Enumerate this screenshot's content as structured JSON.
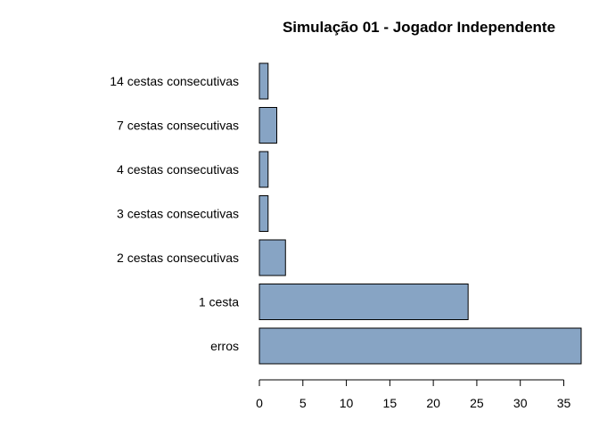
{
  "chart_data": {
    "type": "bar",
    "orientation": "horizontal",
    "title": "Simulação 01 - Jogador Independente",
    "xlabel": "",
    "ylabel": "",
    "categories": [
      "erros",
      "1 cesta",
      "2 cestas consecutivas",
      "3 cestas consecutivas",
      "4 cestas consecutivas",
      "7 cestas consecutivas",
      "14 cestas consecutivas"
    ],
    "values": [
      37,
      24,
      3,
      1,
      1,
      2,
      1
    ],
    "xlim": [
      0,
      37
    ],
    "x_ticks": [
      0,
      5,
      10,
      15,
      20,
      25,
      30,
      35
    ],
    "grid": false,
    "legend": "none",
    "bar_color": "#87a4c4",
    "bar_border_color": "#000000"
  }
}
